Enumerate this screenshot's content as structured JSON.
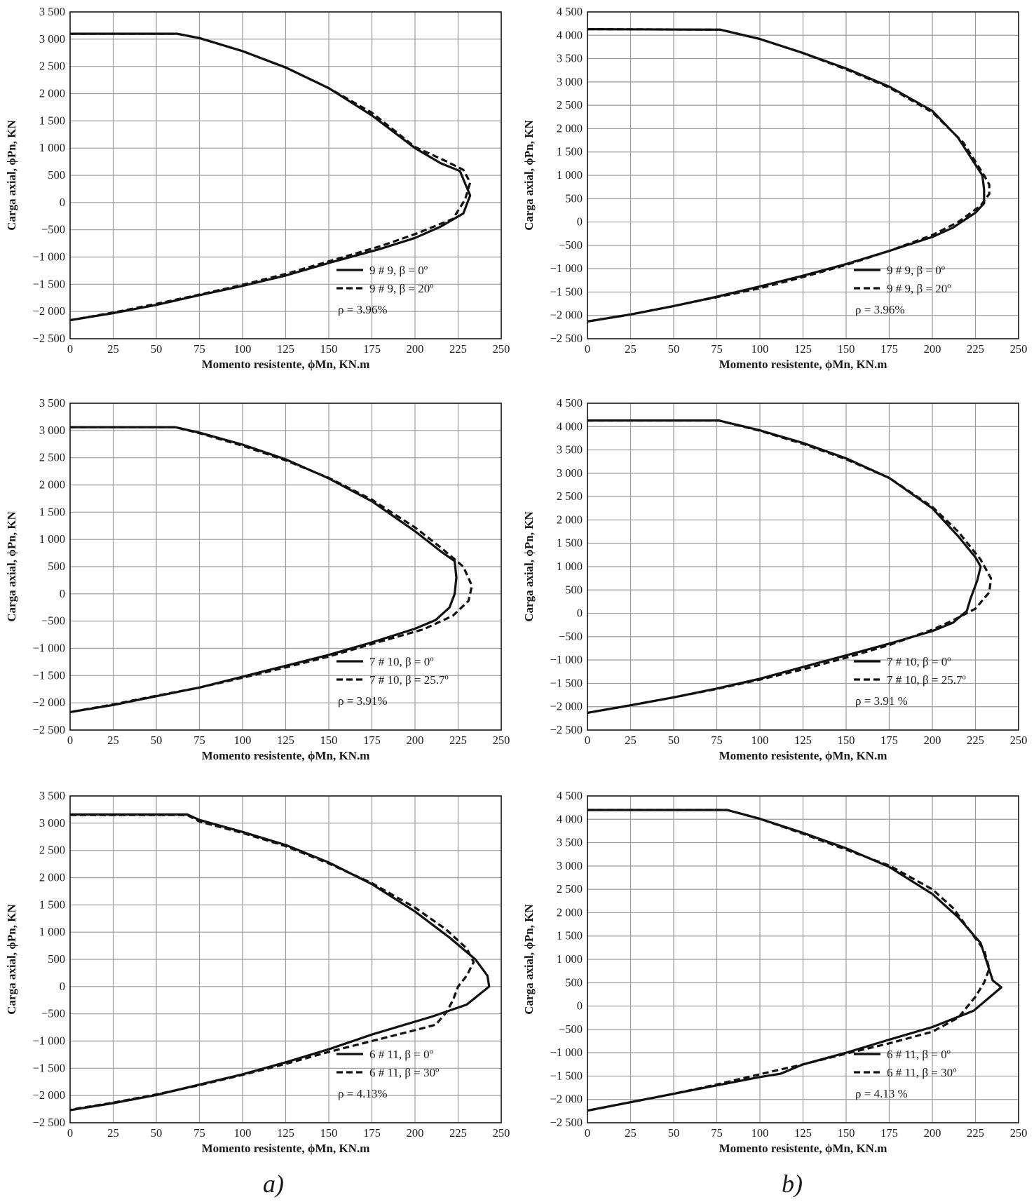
{
  "panel_labels": [
    "a)",
    "b)"
  ],
  "chart_data": [
    {
      "type": "line",
      "xlabel": "Momento resistente, ϕMn, KN.m",
      "ylabel": "Carga axial, ϕPn, KN",
      "xlim": [
        0,
        250
      ],
      "ylim": [
        -2500,
        3500
      ],
      "xticks": [
        0,
        25,
        50,
        75,
        100,
        125,
        150,
        175,
        200,
        225,
        250
      ],
      "yticks": [
        3500,
        3000,
        2500,
        2000,
        1500,
        1000,
        500,
        0,
        -500,
        -1000,
        -1500,
        -2000,
        -2500
      ],
      "xtick_labels": [
        "0",
        "25",
        "50",
        "75",
        "100",
        "125",
        "150",
        "175",
        "200",
        "225",
        "250"
      ],
      "ytick_labels": [
        "3 500",
        "3 000",
        "2 500",
        "2 000",
        "1 500",
        "1 000",
        "500",
        "0",
        "−500",
        "−1 000",
        "−1 500",
        "−2 000",
        "−2 500"
      ],
      "grid": true,
      "legend_position": "bottom-right",
      "annotation": "ρ = 3.96%",
      "series": [
        {
          "name": "9 # 9, β = 0º",
          "style": "solid",
          "x": [
            0,
            62,
            75,
            100,
            125,
            150,
            175,
            200,
            215,
            226,
            232,
            228,
            215,
            200,
            180,
            150,
            125,
            100,
            75,
            50,
            25,
            0
          ],
          "y": [
            3100,
            3100,
            3020,
            2780,
            2480,
            2100,
            1600,
            1000,
            720,
            580,
            130,
            -200,
            -440,
            -650,
            -850,
            -1110,
            -1340,
            -1530,
            -1700,
            -1880,
            -2030,
            -2160
          ]
        },
        {
          "name": "9 # 9, β = 20º",
          "style": "dashed",
          "x": [
            0,
            62,
            75,
            100,
            125,
            150,
            175,
            200,
            218,
            228,
            232,
            229,
            222,
            200,
            180,
            150,
            125,
            100,
            75,
            50,
            25,
            0
          ],
          "y": [
            3100,
            3100,
            3020,
            2780,
            2480,
            2100,
            1650,
            1020,
            760,
            600,
            370,
            50,
            -300,
            -580,
            -800,
            -1080,
            -1310,
            -1510,
            -1690,
            -1860,
            -2020,
            -2160
          ]
        }
      ]
    },
    {
      "type": "line",
      "xlabel": "Momento resistente, ϕMn, KN.m",
      "ylabel": "Carga axial, ϕPn, KN",
      "xlim": [
        0,
        250
      ],
      "ylim": [
        -2500,
        4500
      ],
      "xticks": [
        0,
        25,
        50,
        75,
        100,
        125,
        150,
        175,
        200,
        225,
        250
      ],
      "yticks": [
        4500,
        4000,
        3500,
        3000,
        2500,
        2000,
        1500,
        1000,
        500,
        0,
        -500,
        -1000,
        -1500,
        -2000,
        -2500
      ],
      "xtick_labels": [
        "0",
        "25",
        "50",
        "75",
        "100",
        "125",
        "150",
        "175",
        "200",
        "225",
        "250"
      ],
      "ytick_labels": [
        "4 500",
        "4 000",
        "3 500",
        "3 000",
        "2 500",
        "2 000",
        "1 500",
        "1 000",
        "500",
        "0",
        "−500",
        "−1 000",
        "−1 500",
        "−2 000",
        "−2 500"
      ],
      "grid": true,
      "legend_position": "bottom-right",
      "annotation": "ρ = 3.96%",
      "series": [
        {
          "name": "9 # 9, β = 0º",
          "style": "solid",
          "x": [
            0,
            77,
            100,
            125,
            150,
            175,
            200,
            215,
            229,
            230,
            230,
            225,
            212,
            200,
            175,
            150,
            125,
            100,
            75,
            50,
            25,
            0
          ],
          "y": [
            4130,
            4120,
            3920,
            3620,
            3290,
            2900,
            2380,
            1800,
            1000,
            700,
            400,
            200,
            -120,
            -320,
            -620,
            -900,
            -1150,
            -1380,
            -1600,
            -1800,
            -1980,
            -2130
          ]
        },
        {
          "name": "9 # 9, β = 20º",
          "style": "dashed",
          "x": [
            0,
            77,
            100,
            125,
            150,
            175,
            200,
            218,
            230,
            233,
            233,
            228,
            215,
            200,
            175,
            150,
            125,
            100,
            75,
            50,
            25,
            0
          ],
          "y": [
            4130,
            4120,
            3920,
            3620,
            3270,
            2880,
            2350,
            1700,
            1000,
            800,
            600,
            350,
            0,
            -280,
            -620,
            -920,
            -1180,
            -1420,
            -1610,
            -1800,
            -1980,
            -2130
          ]
        }
      ]
    },
    {
      "type": "line",
      "xlabel": "Momento resistente, ϕMn, KN.m",
      "ylabel": "Carga axial, ϕPn, KN",
      "xlim": [
        0,
        250
      ],
      "ylim": [
        -2500,
        3500
      ],
      "xticks": [
        0,
        25,
        50,
        75,
        100,
        125,
        150,
        175,
        200,
        225,
        250
      ],
      "yticks": [
        3500,
        3000,
        2500,
        2000,
        1500,
        1000,
        500,
        0,
        -500,
        -1000,
        -1500,
        -2000,
        -2500
      ],
      "xtick_labels": [
        "0",
        "25",
        "50",
        "75",
        "100",
        "125",
        "150",
        "175",
        "200",
        "225",
        "250"
      ],
      "ytick_labels": [
        "3 500",
        "3 000",
        "2 500",
        "2 000",
        "1 500",
        "1 000",
        "500",
        "0",
        "−500",
        "−1 000",
        "−1 500",
        "−2 000",
        "−2 500"
      ],
      "grid": true,
      "legend_position": "bottom-right",
      "annotation": "ρ = 3.91%",
      "series": [
        {
          "name": "7 # 10, β = 0º",
          "style": "solid",
          "x": [
            0,
            61,
            75,
            100,
            125,
            150,
            175,
            200,
            215,
            223,
            224,
            223,
            220,
            212,
            200,
            175,
            150,
            125,
            100,
            75,
            50,
            25,
            0
          ],
          "y": [
            3060,
            3060,
            2960,
            2740,
            2470,
            2120,
            1700,
            1150,
            780,
            600,
            300,
            0,
            -250,
            -480,
            -640,
            -890,
            -1120,
            -1320,
            -1520,
            -1720,
            -1880,
            -2040,
            -2170
          ]
        },
        {
          "name": "7 # 10, β = 25.7º",
          "style": "dashed",
          "x": [
            0,
            61,
            75,
            100,
            125,
            150,
            175,
            200,
            215,
            228,
            233,
            231,
            222,
            205,
            175,
            150,
            125,
            100,
            75,
            50,
            25,
            0
          ],
          "y": [
            3060,
            3060,
            2950,
            2720,
            2450,
            2130,
            1730,
            1220,
            850,
            500,
            150,
            -130,
            -400,
            -650,
            -920,
            -1150,
            -1350,
            -1540,
            -1720,
            -1870,
            -2030,
            -2170
          ]
        }
      ]
    },
    {
      "type": "line",
      "xlabel": "Momento resistente, ϕMn, KN.m",
      "ylabel": "Carga axial, ϕPn, KN",
      "xlim": [
        0,
        250
      ],
      "ylim": [
        -2500,
        4500
      ],
      "xticks": [
        0,
        25,
        50,
        75,
        100,
        125,
        150,
        175,
        200,
        225,
        250
      ],
      "yticks": [
        4500,
        4000,
        3500,
        3000,
        2500,
        2000,
        1500,
        1000,
        500,
        0,
        -500,
        -1000,
        -1500,
        -2000,
        -2500
      ],
      "xtick_labels": [
        "0",
        "25",
        "50",
        "75",
        "100",
        "125",
        "150",
        "175",
        "200",
        "225",
        "250"
      ],
      "ytick_labels": [
        "4 500",
        "4 000",
        "3 500",
        "3 000",
        "2 500",
        "2 000",
        "1 500",
        "1 000",
        "500",
        "0",
        "−500",
        "−1 000",
        "−1 500",
        "−2 000",
        "−2 500"
      ],
      "grid": true,
      "legend_position": "bottom-right",
      "annotation": "ρ = 3.91 %",
      "series": [
        {
          "name": "7 # 10, β = 0º",
          "style": "solid",
          "x": [
            0,
            76,
            100,
            125,
            150,
            175,
            200,
            215,
            225,
            228,
            226,
            222,
            220,
            212,
            200,
            175,
            150,
            125,
            100,
            75,
            50,
            25,
            0
          ],
          "y": [
            4130,
            4130,
            3920,
            3650,
            3320,
            2900,
            2250,
            1650,
            1200,
            1000,
            700,
            300,
            50,
            -200,
            -380,
            -650,
            -900,
            -1150,
            -1400,
            -1610,
            -1800,
            -1970,
            -2130
          ]
        },
        {
          "name": "7 # 10, β = 25.7º",
          "style": "dashed",
          "x": [
            0,
            76,
            100,
            125,
            150,
            175,
            200,
            215,
            228,
            234,
            233,
            225,
            212,
            200,
            175,
            150,
            125,
            100,
            75,
            50,
            25,
            0
          ],
          "y": [
            4130,
            4130,
            3910,
            3630,
            3300,
            2900,
            2280,
            1750,
            1150,
            750,
            450,
            100,
            -150,
            -350,
            -680,
            -950,
            -1200,
            -1420,
            -1620,
            -1800,
            -1970,
            -2130
          ]
        }
      ]
    },
    {
      "type": "line",
      "xlabel": "Momento resistente, ϕMn, KN.m",
      "ylabel": "Carga axial, ϕPn, KN",
      "xlim": [
        0,
        250
      ],
      "ylim": [
        -2500,
        3500
      ],
      "xticks": [
        0,
        25,
        50,
        75,
        100,
        125,
        150,
        175,
        200,
        225,
        250
      ],
      "yticks": [
        3500,
        3000,
        2500,
        2000,
        1500,
        1000,
        500,
        0,
        -500,
        -1000,
        -1500,
        -2000,
        -2500
      ],
      "xtick_labels": [
        "0",
        "25",
        "50",
        "75",
        "100",
        "125",
        "150",
        "175",
        "200",
        "225",
        "250"
      ],
      "ytick_labels": [
        "3 500",
        "3 000",
        "2 500",
        "2 000",
        "1 500",
        "1 000",
        "500",
        "0",
        "−500",
        "−1 000",
        "−1 500",
        "−2 000",
        "−2 500"
      ],
      "grid": true,
      "legend_position": "bottom-right",
      "annotation": "ρ = 4.13%",
      "series": [
        {
          "name": "6 # 11, β = 0º",
          "style": "solid",
          "x": [
            0,
            68,
            75,
            100,
            125,
            150,
            175,
            200,
            220,
            235,
            242,
            243,
            230,
            210,
            175,
            150,
            125,
            100,
            75,
            50,
            25,
            0
          ],
          "y": [
            3160,
            3160,
            3060,
            2840,
            2600,
            2280,
            1880,
            1380,
            900,
            500,
            200,
            0,
            -330,
            -550,
            -880,
            -1150,
            -1390,
            -1610,
            -1800,
            -1990,
            -2140,
            -2270
          ]
        },
        {
          "name": "6 # 11, β = 30º",
          "style": "dashed",
          "x": [
            0,
            68,
            75,
            100,
            125,
            150,
            175,
            200,
            218,
            230,
            234,
            230,
            225,
            222,
            218,
            212,
            200,
            175,
            150,
            125,
            100,
            75,
            50,
            25,
            0
          ],
          "y": [
            3150,
            3150,
            3030,
            2820,
            2580,
            2260,
            1900,
            1450,
            1050,
            700,
            450,
            200,
            0,
            -250,
            -480,
            -700,
            -800,
            -1000,
            -1200,
            -1420,
            -1620,
            -1810,
            -1980,
            -2130,
            -2260
          ]
        }
      ]
    },
    {
      "type": "line",
      "xlabel": "Momento resistente, ϕMn, KN.m",
      "ylabel": "Carga axial, ϕPn, KN",
      "xlim": [
        0,
        250
      ],
      "ylim": [
        -2500,
        4500
      ],
      "xticks": [
        0,
        25,
        50,
        75,
        100,
        125,
        150,
        175,
        200,
        225,
        250
      ],
      "yticks": [
        4500,
        4000,
        3500,
        3000,
        2500,
        2000,
        1500,
        1000,
        500,
        0,
        -500,
        -1000,
        -1500,
        -2000,
        -2500
      ],
      "xtick_labels": [
        "0",
        "25",
        "50",
        "75",
        "100",
        "125",
        "150",
        "175",
        "200",
        "225",
        "250"
      ],
      "ytick_labels": [
        "4 500",
        "4 000",
        "3 500",
        "3 000",
        "2 500",
        "2 000",
        "1 500",
        "1 000",
        "500",
        "0",
        "−500",
        "−1 000",
        "−1 500",
        "−2 000",
        "−2 500"
      ],
      "grid": true,
      "legend_position": "bottom-right",
      "annotation": "ρ = 4.13 %",
      "series": [
        {
          "name": "6 # 11, β = 0º",
          "style": "solid",
          "x": [
            0,
            81,
            100,
            125,
            150,
            175,
            200,
            215,
            228,
            235,
            240,
            224,
            200,
            175,
            150,
            125,
            112,
            100,
            75,
            50,
            25,
            0
          ],
          "y": [
            4200,
            4200,
            4010,
            3710,
            3380,
            2980,
            2400,
            1900,
            1350,
            550,
            400,
            -100,
            -450,
            -720,
            -1000,
            -1250,
            -1450,
            -1520,
            -1700,
            -1880,
            -2060,
            -2240
          ]
        },
        {
          "name": "6 # 11, β = 30º",
          "style": "dashed",
          "x": [
            0,
            81,
            100,
            125,
            150,
            175,
            200,
            212,
            220,
            230,
            233,
            230,
            225,
            215,
            200,
            175,
            150,
            125,
            100,
            75,
            50,
            25,
            0
          ],
          "y": [
            4200,
            4200,
            4010,
            3690,
            3350,
            3010,
            2500,
            2100,
            1700,
            1200,
            800,
            500,
            200,
            -250,
            -550,
            -800,
            -1020,
            -1250,
            -1460,
            -1680,
            -1880,
            -2060,
            -2240
          ]
        }
      ]
    }
  ]
}
